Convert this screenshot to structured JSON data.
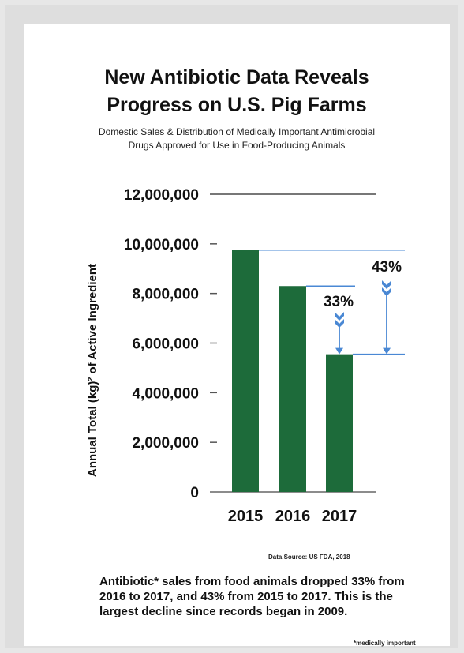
{
  "colors": {
    "bar": "#1d6b3a",
    "arrow": "#4a88d4",
    "axis": "#555555",
    "text": "#111111"
  },
  "footer": {
    "source": "Data Source: US FDA, 2018",
    "summary": "Antibiotic* sales from food animals dropped 33% from 2016 to 2017, and 43% from 2015 to 2017. This is the largest decline since records began in 2009.",
    "footnote": "*medically important"
  },
  "chart_data": {
    "type": "bar",
    "title_lines": [
      "New Antibiotic Data Reveals",
      "Progress on U.S. Pig Farms"
    ],
    "subtitle_lines": [
      "Domestic Sales & Distribution of Medically Important Antimicrobial",
      "Drugs Approved for Use in Food-Producing Animals"
    ],
    "ylabel": "Annual Total (kg)² of Active Ingredient",
    "xlabel": "",
    "categories": [
      "2015",
      "2016",
      "2017"
    ],
    "values": [
      9750000,
      8300000,
      5550000
    ],
    "ylim": [
      0,
      12000000
    ],
    "yticks": [
      0,
      2000000,
      4000000,
      6000000,
      8000000,
      10000000,
      12000000
    ],
    "ytick_labels": [
      "0",
      "2,000,000",
      "4,000,000",
      "6,000,000",
      "8,000,000",
      "10,000,000",
      "12,000,000"
    ],
    "grid": false,
    "annotations": [
      {
        "label": "33%",
        "from": "2016",
        "to": "2017"
      },
      {
        "label": "43%",
        "from": "2015",
        "to": "2017"
      }
    ]
  }
}
